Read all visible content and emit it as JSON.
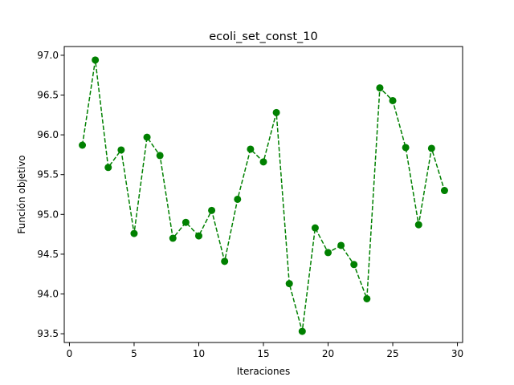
{
  "chart_data": {
    "type": "line",
    "title": "ecoli_set_const_10",
    "xlabel": "Iteraciones",
    "ylabel": "Función objetivo",
    "xlim": [
      -0.4,
      30.4
    ],
    "ylim": [
      93.39,
      97.11
    ],
    "xticks": [
      0,
      5,
      10,
      15,
      20,
      25,
      30
    ],
    "yticks": [
      93.5,
      94.0,
      94.5,
      95.0,
      95.5,
      96.0,
      96.5,
      97.0
    ],
    "xtick_labels": [
      "0",
      "5",
      "10",
      "15",
      "20",
      "25",
      "30"
    ],
    "ytick_labels": [
      "93.5",
      "94.0",
      "94.5",
      "95.0",
      "95.5",
      "96.0",
      "96.5",
      "97.0"
    ],
    "grid": false,
    "series": [
      {
        "color": "#008000",
        "line_style": "dashed",
        "marker": "circle",
        "x": [
          1,
          2,
          3,
          4,
          5,
          6,
          7,
          8,
          9,
          10,
          11,
          12,
          13,
          14,
          15,
          16,
          17,
          18,
          19,
          20,
          21,
          22,
          23,
          24,
          25,
          26,
          27,
          28,
          29
        ],
        "y": [
          95.87,
          96.94,
          95.59,
          95.81,
          94.76,
          95.97,
          95.74,
          94.7,
          94.9,
          94.73,
          95.05,
          94.41,
          95.19,
          95.82,
          95.66,
          96.28,
          94.13,
          93.53,
          94.83,
          94.52,
          94.61,
          94.37,
          93.94,
          96.59,
          96.43,
          95.84,
          94.87,
          95.83,
          95.3
        ]
      }
    ]
  }
}
